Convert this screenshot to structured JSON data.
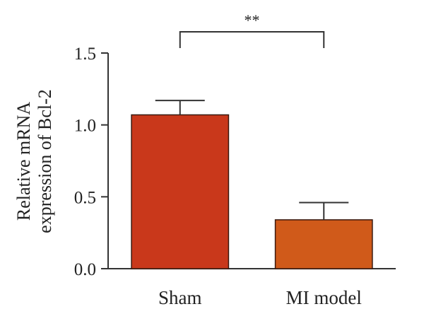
{
  "chart_data": {
    "type": "bar",
    "categories": [
      "Sham",
      "MI model"
    ],
    "values": [
      1.07,
      0.34
    ],
    "errors": [
      0.1,
      0.12
    ],
    "colors": [
      "#c9381b",
      "#d05a1a"
    ],
    "ylabel_lines": [
      "Relative mRNA",
      "expression of Bcl-2"
    ],
    "ylim": [
      0,
      1.5
    ],
    "yticks": [
      "0.0",
      "0.5",
      "1.0",
      "1.5"
    ],
    "significance": {
      "label": "**",
      "between": [
        0,
        1
      ]
    },
    "grid": false,
    "legend": "none"
  }
}
